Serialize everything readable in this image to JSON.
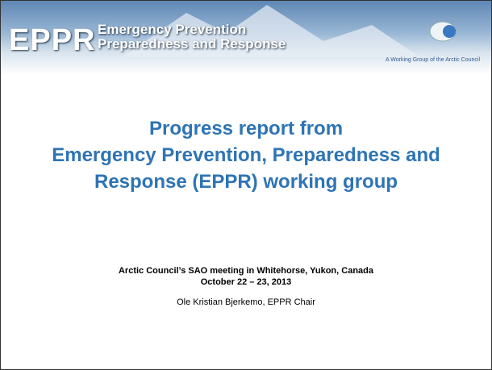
{
  "header": {
    "logo": "EPPR",
    "line1": "Emergency Prevention",
    "line2": "Preparedness and Response",
    "tagline": "A Working Group of the Arctic Council"
  },
  "title": [
    "Progress report from",
    "Emergency Prevention, Preparedness and",
    "Response  (EPPR) working group"
  ],
  "meeting": [
    "Arctic Council’s SAO meeting in Whitehorse, Yukon, Canada",
    "October 22 – 23, 2013"
  ],
  "presenter": "Ole Kristian Bjerkemo, EPPR Chair"
}
